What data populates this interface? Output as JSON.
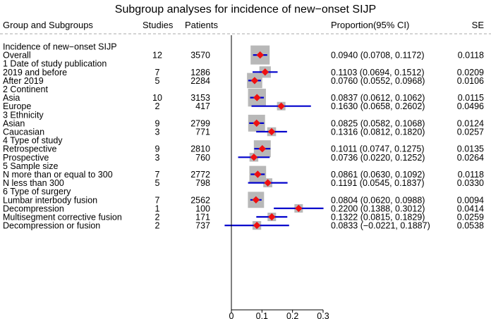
{
  "chart_data": {
    "type": "forest",
    "title": "Subgroup analyses for incidence of new−onset SIJP",
    "columns": {
      "group": "Group and Subgroups",
      "studies": "Studies",
      "patients": "Patients",
      "proportion": "Proportion(95% CI)",
      "se": "SE"
    },
    "x_axis": {
      "min": 0,
      "max": 0.3,
      "ticks": [
        "0",
        "0.1",
        "0.2",
        "0.3"
      ],
      "tick_values": [
        0,
        0.1,
        0.2,
        0.3
      ]
    },
    "colors": {
      "box": "#b8b8b8",
      "ci_line": "#0000cc",
      "point": "#ee1111",
      "axis": "#000000",
      "dash": "#aaaaaa"
    },
    "rows": [
      {
        "label": "Incidence of new−onset SIJP",
        "header": true
      },
      {
        "label": "Overall",
        "studies": "12",
        "patients": "3570",
        "est": 0.094,
        "lo": 0.0708,
        "hi": 0.1172,
        "ci": "0.0940 (0.0708, 0.1172)",
        "se": "0.0118"
      },
      {
        "label": "1 Date of study publication",
        "header": true
      },
      {
        "label": "2019 and before",
        "studies": "7",
        "patients": "1286",
        "est": 0.1103,
        "lo": 0.0694,
        "hi": 0.1512,
        "ci": "0.1103 (0.0694, 0.1512)",
        "se": "0.0209"
      },
      {
        "label": "After 2019",
        "studies": "5",
        "patients": "2284",
        "est": 0.076,
        "lo": 0.0552,
        "hi": 0.0968,
        "ci": "0.0760 (0.0552, 0.0968)",
        "se": "0.0106"
      },
      {
        "label": "2 Continent",
        "header": true
      },
      {
        "label": "Asia",
        "studies": "10",
        "patients": "3153",
        "est": 0.0837,
        "lo": 0.0612,
        "hi": 0.1062,
        "ci": "0.0837 (0.0612, 0.1062)",
        "se": "0.0115"
      },
      {
        "label": "Europe",
        "studies": "2",
        "patients": "417",
        "est": 0.163,
        "lo": 0.0658,
        "hi": 0.2602,
        "ci": "0.1630 (0.0658, 0.2602)",
        "se": "0.0496"
      },
      {
        "label": "3 Ethnicity",
        "header": true
      },
      {
        "label": "Asian",
        "studies": "9",
        "patients": "2799",
        "est": 0.0825,
        "lo": 0.0582,
        "hi": 0.1068,
        "ci": "0.0825 (0.0582, 0.1068)",
        "se": "0.0124"
      },
      {
        "label": "Caucasian",
        "studies": "3",
        "patients": "771",
        "est": 0.1316,
        "lo": 0.0812,
        "hi": 0.182,
        "ci": "0.1316 (0.0812, 0.1820)",
        "se": "0.0257"
      },
      {
        "label": "4 Type of study",
        "header": true
      },
      {
        "label": "Retrospective",
        "studies": "9",
        "patients": "2810",
        "est": 0.1011,
        "lo": 0.0747,
        "hi": 0.1275,
        "ci": "0.1011 (0.0747, 0.1275)",
        "se": "0.0135"
      },
      {
        "label": "Prospective",
        "studies": "3",
        "patients": "760",
        "est": 0.0736,
        "lo": 0.022,
        "hi": 0.1252,
        "ci": "0.0736 (0.0220, 0.1252)",
        "se": "0.0264"
      },
      {
        "label": "5 Sample size",
        "header": true
      },
      {
        "label": "N more than or equal to 300",
        "studies": "7",
        "patients": "2772",
        "est": 0.0861,
        "lo": 0.063,
        "hi": 0.1092,
        "ci": "0.0861 (0.0630, 0.1092)",
        "se": "0.0118"
      },
      {
        "label": "N less than 300",
        "studies": "5",
        "patients": "798",
        "est": 0.1191,
        "lo": 0.0545,
        "hi": 0.1837,
        "ci": "0.1191 (0.0545, 0.1837)",
        "se": "0.0330"
      },
      {
        "label": "6 Type of surgery",
        "header": true
      },
      {
        "label": "Lumbar interbody fusion",
        "studies": "7",
        "patients": "2562",
        "est": 0.0804,
        "lo": 0.062,
        "hi": 0.0988,
        "ci": "0.0804 (0.0620, 0.0988)",
        "se": "0.0094"
      },
      {
        "label": "Decompression",
        "studies": "1",
        "patients": "100",
        "est": 0.22,
        "lo": 0.1388,
        "hi": 0.3012,
        "ci": "0.2200 (0.1388, 0.3012)",
        "se": "0.0414"
      },
      {
        "label": "Multisegment corrective fusion",
        "studies": "2",
        "patients": "171",
        "est": 0.1322,
        "lo": 0.0815,
        "hi": 0.1829,
        "ci": "0.1322 (0.0815, 0.1829)",
        "se": "0.0259"
      },
      {
        "label": "Decompression or fusion",
        "studies": "2",
        "patients": "737",
        "est": 0.0833,
        "lo": -0.0221,
        "hi": 0.1887,
        "ci": "0.0833 (−0.0221, 0.1887)",
        "se": "0.0538"
      }
    ]
  }
}
